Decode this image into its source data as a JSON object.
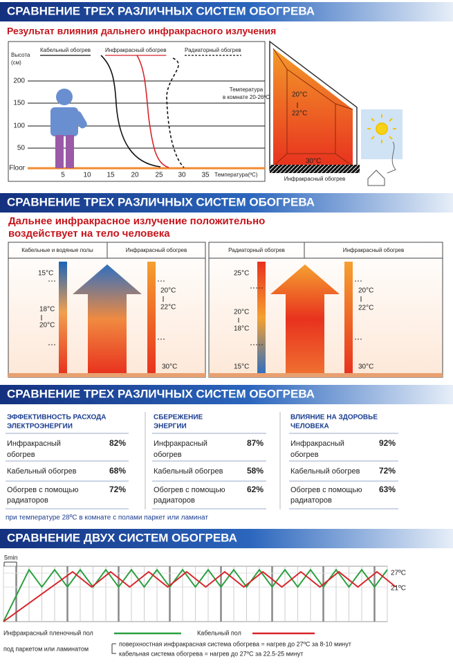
{
  "sections": [
    {
      "title": "СРАВНЕНИЕ ТРЕХ РАЗЛИЧНЫХ СИСТЕМ ОБОГРЕВА",
      "subtitle": "Результат влияния дальнего инфракрасного излучения",
      "legend": [
        "Кабельный обогрев",
        "Инфракрасный обогрев",
        "Радиаторный обогрев"
      ],
      "y_axis_label": [
        "Высота",
        "(см)"
      ],
      "y_ticks": [
        "200",
        "150",
        "100",
        "50",
        "Floor"
      ],
      "x_ticks": [
        "5",
        "10",
        "15",
        "20",
        "25",
        "30",
        "35"
      ],
      "x_axis_label": "Температура(ºC)",
      "note": [
        "Температура",
        "в комнате 20-26ºC"
      ],
      "room": {
        "temp_top": "20°C",
        "temp_mid": "22°C",
        "temp_floor": "30°C",
        "floor_label": "Инфракрасный обогрев"
      }
    },
    {
      "title": "СРАВНЕНИЕ ТРЕХ РАЗЛИЧНЫХ СИСТЕМ ОБОГРЕВА",
      "subtitle": [
        "Дальнее инфракрасное излучение положительно",
        "воздействует на тело человека"
      ],
      "panels": [
        {
          "headers": [
            "Кабельные и водяные полы",
            "Инфракрасный обогрев"
          ],
          "left_labels": [
            "15°C",
            "18°C",
            "20°C"
          ],
          "right_labels": [
            "20°C",
            "22°C",
            "30°C"
          ]
        },
        {
          "headers": [
            "Радиаторный обогрев",
            "Инфракрасный обогрев"
          ],
          "left_labels": [
            "25°C",
            "20°C",
            "18°C",
            "15°C"
          ],
          "right_labels": [
            "20°C",
            "22°C",
            "30°C"
          ]
        }
      ]
    },
    {
      "title": "СРАВНЕНИЕ ТРЕХ РАЗЛИЧНЫХ СИСТЕМ ОБОГРЕВА",
      "columns": [
        {
          "heading": [
            "ЭФФЕКТИВНОСТЬ РАСХОДА",
            "ЭЛЕКТРОЭНЕРГИИ"
          ],
          "rows": [
            [
              [
                "Инфракрасный",
                "обогрев"
              ],
              "82%"
            ],
            [
              [
                "Кабельный обогрев"
              ],
              "68%"
            ],
            [
              [
                "Обогрев с помощью",
                "радиаторов"
              ],
              "72%"
            ]
          ]
        },
        {
          "heading": [
            "СБЕРЕЖЕНИЕ",
            "ЭНЕРГИИ"
          ],
          "rows": [
            [
              [
                "Инфракрасный",
                "обогрев"
              ],
              "87%"
            ],
            [
              [
                "Кабельный обогрев"
              ],
              "58%"
            ],
            [
              [
                "Обогрев с помощью",
                "радиаторов"
              ],
              "62%"
            ]
          ]
        },
        {
          "heading": [
            "ВЛИЯНИЕ НА ЗДОРОВЬЕ",
            "ЧЕЛОВЕКА"
          ],
          "rows": [
            [
              [
                "Инфракрасный",
                "обогрев"
              ],
              "92%"
            ],
            [
              [
                "Кабельный обогрев"
              ],
              "72%"
            ],
            [
              [
                "Обогрев с помощью",
                "радиаторов"
              ],
              "63%"
            ]
          ]
        }
      ],
      "note": "при температуре 28ºC в комнате с полами паркет или ламинат"
    },
    {
      "title": "СРАВНЕНИЕ ДВУХ СИСТЕМ ОБОГРЕВА",
      "interval": "5min",
      "levels": [
        "27ºC",
        "21ºC"
      ],
      "legend": [
        "Инфракрасный пленочный пол",
        "Кабельный пол"
      ],
      "legend_sub": "под паркетом или ламинатом",
      "notes": [
        "поверхностная инфракрасная система обогрева = нагрев до 27ºC за 8-10 минут",
        "кабельная система обогрева = нагрев до 27ºC за 22.5-25 минут"
      ]
    }
  ]
}
